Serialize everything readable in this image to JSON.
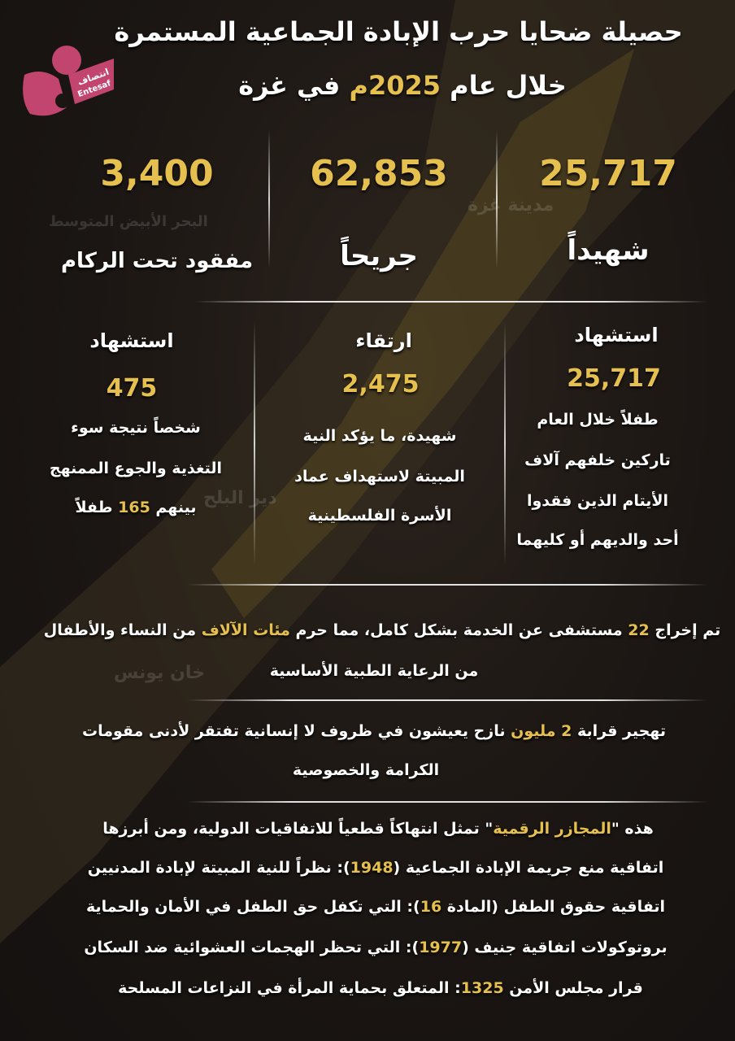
{
  "colors": {
    "accent": "#e6c04e",
    "text": "#ffffff",
    "logo": "#c2456f",
    "background": "#1b1613"
  },
  "logo": {
    "arabic": "انتصاف",
    "latin": "Entesaf"
  },
  "title": {
    "line1": "حصيلة ضحايا حرب الإبادة الجماعية المستمرة",
    "line2_a": "خلال عام ",
    "line2_year": "2025م",
    "line2_b": " في غزة"
  },
  "stats": [
    {
      "value": "25,717",
      "label": "شهيداً"
    },
    {
      "value": "62,853",
      "label": "جريحاً"
    },
    {
      "value": "3,400",
      "label": "مفقود تحت الركام"
    }
  ],
  "columns": [
    {
      "heading": "استشهاد",
      "value": "25,717",
      "lines": [
        "طفلاً خلال العام",
        "تاركين خلفهم آلاف",
        "الأيتام الذين فقدوا",
        "أحد والديهم أو كليهما"
      ]
    },
    {
      "heading": "ارتقاء",
      "value": "2,475",
      "lines": [
        "شهيدة، ما يؤكد النية",
        "المبيتة لاستهداف عماد",
        "الأسرة الفلسطينية"
      ]
    },
    {
      "heading": "استشهاد",
      "value": "475",
      "lines": [
        "شخصاً نتيجة سوء",
        "التغذية والجوع الممنهج"
      ],
      "last_a": "بينهم ",
      "last_num": "165",
      "last_b": " طفلاً"
    }
  ],
  "hospitals": {
    "a": "تم إخراج ",
    "num": "22",
    "b": " مستشفى عن الخدمة بشكل كامل، مما حرم ",
    "hl": "مئات الآلاف",
    "c": " من النساء والأطفال",
    "line2": "من الرعاية الطبية الأساسية"
  },
  "displacement": {
    "a": "تهجير قرابة ",
    "hl": "2 مليون",
    "b": " نازح يعيشون في ظروف لا إنسانية تفتقر لأدنى مقومات",
    "line2": "الكرامة والخصوصية"
  },
  "conventions": {
    "intro_a": "هذه \"",
    "intro_hl": "المجازر الرقمية",
    "intro_b": "\" تمثل انتهاكاً قطعياً للاتفاقيات الدولية، ومن أبرزها",
    "l1_a": "اتفاقية منع جريمة الإبادة الجماعية (",
    "l1_num": "1948",
    "l1_b": "): نظراً للنية المبيتة لإبادة المدنيين",
    "l2_a": "اتفاقية حقوق الطفل (المادة ",
    "l2_num": "16",
    "l2_b": "): التي تكفل حق الطفل في الأمان والحماية",
    "l3_a": "بروتوكولات اتفاقية جنيف (",
    "l3_num": "1977",
    "l3_b": "): التي تحظر الهجمات العشوائية ضد السكان",
    "l4_a": "قرار مجلس الأمن ",
    "l4_num": "1325",
    "l4_b": ": المتعلق بحماية المرأة في النزاعات المسلحة"
  }
}
